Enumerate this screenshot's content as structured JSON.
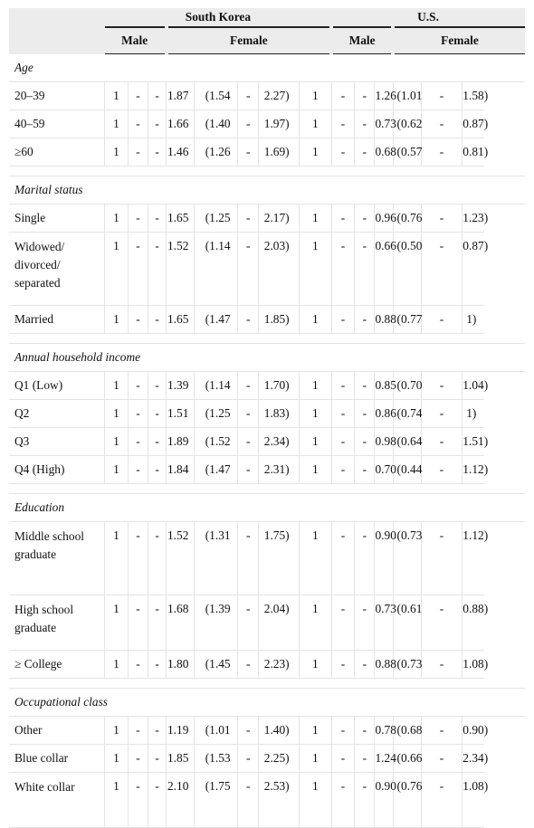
{
  "header": {
    "countries": [
      "South Korea",
      "U.S."
    ],
    "sexes": [
      "Male",
      "Female",
      "Male",
      "Female"
    ]
  },
  "sections": [
    {
      "title": "Age",
      "rows": [
        {
          "label": "20–39",
          "kr_male": [
            "1",
            "-",
            "-"
          ],
          "kr_female": [
            "1.87",
            "(1.54",
            "-",
            "2.27)"
          ],
          "us_male": [
            "1",
            "-",
            "-"
          ],
          "us_female": [
            "1.26",
            "(1.01",
            "-",
            "1.58)"
          ]
        },
        {
          "label": "40–59",
          "kr_male": [
            "1",
            "-",
            "-"
          ],
          "kr_female": [
            "1.66",
            "(1.40",
            "-",
            "1.97)"
          ],
          "us_male": [
            "1",
            "-",
            "-"
          ],
          "us_female": [
            "0.73",
            "(0.62",
            "-",
            "0.87)"
          ]
        },
        {
          "label": "≥60",
          "kr_male": [
            "1",
            "-",
            "-"
          ],
          "kr_female": [
            "1.46",
            "(1.26",
            "-",
            "1.69)"
          ],
          "us_male": [
            "1",
            "-",
            "-"
          ],
          "us_female": [
            "0.68",
            "(0.57",
            "-",
            "0.81)"
          ]
        }
      ]
    },
    {
      "title": "Marital status",
      "rows": [
        {
          "label": "Single",
          "kr_male": [
            "1",
            "-",
            "-"
          ],
          "kr_female": [
            "1.65",
            "(1.25",
            "-",
            "2.17)"
          ],
          "us_male": [
            "1",
            "-",
            "-"
          ],
          "us_female": [
            "0.96",
            "(0.76",
            "-",
            "1.23)"
          ]
        },
        {
          "label": "Widowed/ divorced/ separated",
          "kr_male": [
            "1",
            "-",
            "-"
          ],
          "kr_female": [
            "1.52",
            "(1.14",
            "-",
            "2.03)"
          ],
          "us_male": [
            "1",
            "-",
            "-"
          ],
          "us_female": [
            "0.66",
            "(0.50",
            "-",
            "0.87)"
          ]
        },
        {
          "label": "Married",
          "kr_male": [
            "1",
            "-",
            "-"
          ],
          "kr_female": [
            "1.65",
            "(1.47",
            "-",
            "1.85)"
          ],
          "us_male": [
            "1",
            "-",
            "-"
          ],
          "us_female": [
            "0.88",
            "(0.77",
            "-",
            "1)"
          ]
        }
      ]
    },
    {
      "title": "Annual household income",
      "rows": [
        {
          "label": "Q1 (Low)",
          "kr_male": [
            "1",
            "-",
            "-"
          ],
          "kr_female": [
            "1.39",
            "(1.14",
            "-",
            "1.70)"
          ],
          "us_male": [
            "1",
            "-",
            "-"
          ],
          "us_female": [
            "0.85",
            "(0.70",
            "-",
            "1.04)"
          ]
        },
        {
          "label": "Q2",
          "kr_male": [
            "1",
            "-",
            "-"
          ],
          "kr_female": [
            "1.51",
            "(1.25",
            "-",
            "1.83)"
          ],
          "us_male": [
            "1",
            "-",
            "-"
          ],
          "us_female": [
            "0.86",
            "(0.74",
            "-",
            "1)"
          ]
        },
        {
          "label": "Q3",
          "kr_male": [
            "1",
            "-",
            "-"
          ],
          "kr_female": [
            "1.89",
            "(1.52",
            "-",
            "2.34)"
          ],
          "us_male": [
            "1",
            "-",
            "-"
          ],
          "us_female": [
            "0.98",
            "(0.64",
            "-",
            "1.51)"
          ]
        },
        {
          "label": "Q4 (High)",
          "kr_male": [
            "1",
            "-",
            "-"
          ],
          "kr_female": [
            "1.84",
            "(1.47",
            "-",
            "2.31)"
          ],
          "us_male": [
            "1",
            "-",
            "-"
          ],
          "us_female": [
            "0.70",
            "(0.44",
            "-",
            "1.12)"
          ]
        }
      ]
    },
    {
      "title": "Education",
      "rows": [
        {
          "label": "Middle school graduate",
          "kr_male": [
            "1",
            "-",
            "-"
          ],
          "kr_female": [
            "1.52",
            "(1.31",
            "-",
            "1.75)"
          ],
          "us_male": [
            "1",
            "-",
            "-"
          ],
          "us_female": [
            "0.90",
            "(0.73",
            "-",
            "1.12)"
          ]
        },
        {
          "label": "High school graduate",
          "kr_male": [
            "1",
            "-",
            "-"
          ],
          "kr_female": [
            "1.68",
            "(1.39",
            "-",
            "2.04)"
          ],
          "us_male": [
            "1",
            "-",
            "-"
          ],
          "us_female": [
            "0.73",
            "(0.61",
            "-",
            "0.88)"
          ]
        },
        {
          "label": "≥ College",
          "kr_male": [
            "1",
            "-",
            "-"
          ],
          "kr_female": [
            "1.80",
            "(1.45",
            "-",
            "2.23)"
          ],
          "us_male": [
            "1",
            "-",
            "-"
          ],
          "us_female": [
            "0.88",
            "(0.73",
            "-",
            "1.08)"
          ]
        }
      ]
    },
    {
      "title": "Occupational class",
      "rows": [
        {
          "label": "Other",
          "kr_male": [
            "1",
            "-",
            "-"
          ],
          "kr_female": [
            "1.19",
            "(1.01",
            "-",
            "1.40)"
          ],
          "us_male": [
            "1",
            "-",
            "-"
          ],
          "us_female": [
            "0.78",
            "(0.68",
            "-",
            "0.90)"
          ]
        },
        {
          "label": "Blue collar",
          "kr_male": [
            "1",
            "-",
            "-"
          ],
          "kr_female": [
            "1.85",
            "(1.53",
            "-",
            "2.25)"
          ],
          "us_male": [
            "1",
            "-",
            "-"
          ],
          "us_female": [
            "1.24",
            "(0.66",
            "-",
            "2.34)"
          ]
        },
        {
          "label": "White collar",
          "kr_male": [
            "1",
            "-",
            "-"
          ],
          "kr_female": [
            "2.10",
            "(1.75",
            "-",
            "2.53)"
          ],
          "us_male": [
            "1",
            "-",
            "-"
          ],
          "us_female": [
            "0.90",
            "(0.76",
            "-",
            "1.08)"
          ]
        }
      ]
    }
  ]
}
